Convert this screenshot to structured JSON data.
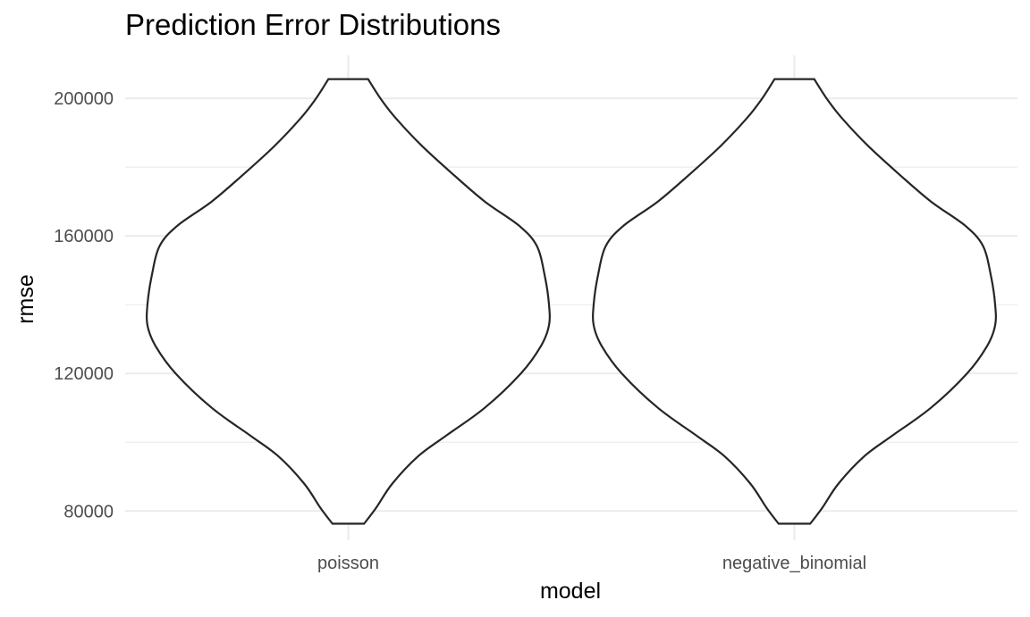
{
  "chart_data": {
    "type": "violin",
    "title": "Prediction Error Distributions",
    "xlabel": "model",
    "ylabel": "rmse",
    "categories": [
      "poisson",
      "negative_binomial"
    ],
    "yticks": [
      80000,
      120000,
      160000,
      200000
    ],
    "ylim": [
      71500,
      212500
    ],
    "grid": true,
    "legend": "none",
    "series": [
      {
        "category": "poisson",
        "min": 76300,
        "max": 205600,
        "density": [
          [
            76300,
            0.079
          ],
          [
            81000,
            0.14
          ],
          [
            88000,
            0.22
          ],
          [
            96000,
            0.35
          ],
          [
            102000,
            0.49
          ],
          [
            110000,
            0.68
          ],
          [
            120000,
            0.86
          ],
          [
            128000,
            0.96
          ],
          [
            134000,
            1.0
          ],
          [
            140000,
            1.0
          ],
          [
            148000,
            0.98
          ],
          [
            157000,
            0.94
          ],
          [
            163000,
            0.85
          ],
          [
            170000,
            0.68
          ],
          [
            178000,
            0.52
          ],
          [
            186000,
            0.37
          ],
          [
            194000,
            0.24
          ],
          [
            200000,
            0.16
          ],
          [
            205600,
            0.099
          ]
        ]
      },
      {
        "category": "negative_binomial",
        "min": 76300,
        "max": 205600,
        "density": [
          [
            76300,
            0.079
          ],
          [
            81000,
            0.14
          ],
          [
            88000,
            0.22
          ],
          [
            96000,
            0.35
          ],
          [
            102000,
            0.49
          ],
          [
            110000,
            0.68
          ],
          [
            120000,
            0.86
          ],
          [
            128000,
            0.96
          ],
          [
            134000,
            1.0
          ],
          [
            140000,
            1.0
          ],
          [
            148000,
            0.98
          ],
          [
            157000,
            0.94
          ],
          [
            163000,
            0.85
          ],
          [
            170000,
            0.68
          ],
          [
            178000,
            0.52
          ],
          [
            186000,
            0.37
          ],
          [
            194000,
            0.24
          ],
          [
            200000,
            0.16
          ],
          [
            205600,
            0.099
          ]
        ]
      }
    ]
  }
}
